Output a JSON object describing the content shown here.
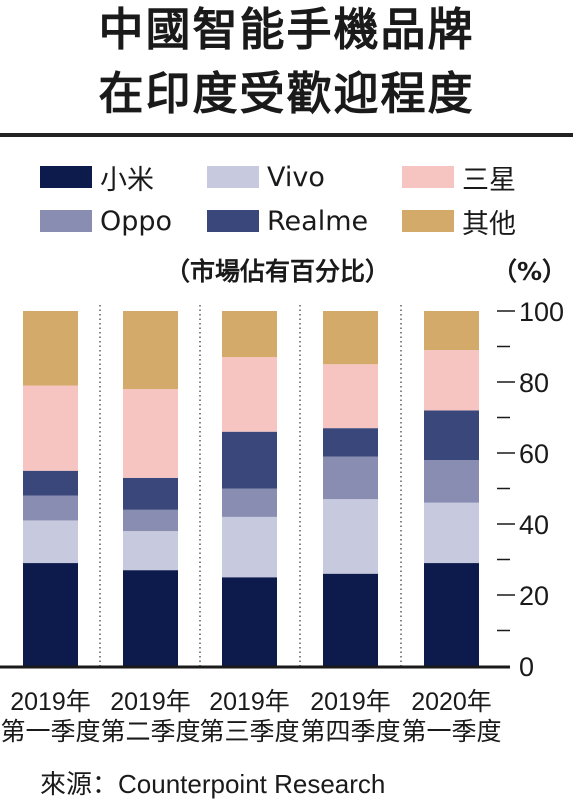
{
  "chart_data": {
    "type": "bar",
    "stacked": true,
    "title_lines": [
      "中國智能手機品牌",
      "在印度受歡迎程度"
    ],
    "subtitle": "（市場佔有百分比）",
    "unit": "（%）",
    "categories": [
      {
        "year": "2019年",
        "quarter": "第一季度"
      },
      {
        "year": "2019年",
        "quarter": "第二季度"
      },
      {
        "year": "2019年",
        "quarter": "第三季度"
      },
      {
        "year": "2019年",
        "quarter": "第四季度"
      },
      {
        "year": "2020年",
        "quarter": "第一季度"
      }
    ],
    "series": [
      {
        "name": "小米",
        "color": "#0c1a4c",
        "values": [
          29,
          27,
          25,
          26,
          29
        ]
      },
      {
        "name": "Vivo",
        "color": "#c7c9df",
        "values": [
          12,
          11,
          17,
          21,
          17
        ]
      },
      {
        "name": "Oppo",
        "color": "#8a8db2",
        "values": [
          7,
          6,
          8,
          12,
          12
        ]
      },
      {
        "name": "Realme",
        "color": "#3a477b",
        "values": [
          7,
          9,
          16,
          8,
          14
        ]
      },
      {
        "name": "三星",
        "color": "#f6c5c2",
        "values": [
          24,
          25,
          21,
          18,
          17
        ]
      },
      {
        "name": "其他",
        "color": "#d4aa6a",
        "values": [
          21,
          22,
          13,
          15,
          11
        ]
      }
    ],
    "legend_order": [
      "小米",
      "Vivo",
      "三星",
      "Oppo",
      "Realme",
      "其他"
    ],
    "ylim": [
      0,
      100
    ],
    "yticks": [
      0,
      20,
      40,
      60,
      80,
      100
    ],
    "legend_position": "top"
  },
  "source": "來源：Counterpoint Research"
}
